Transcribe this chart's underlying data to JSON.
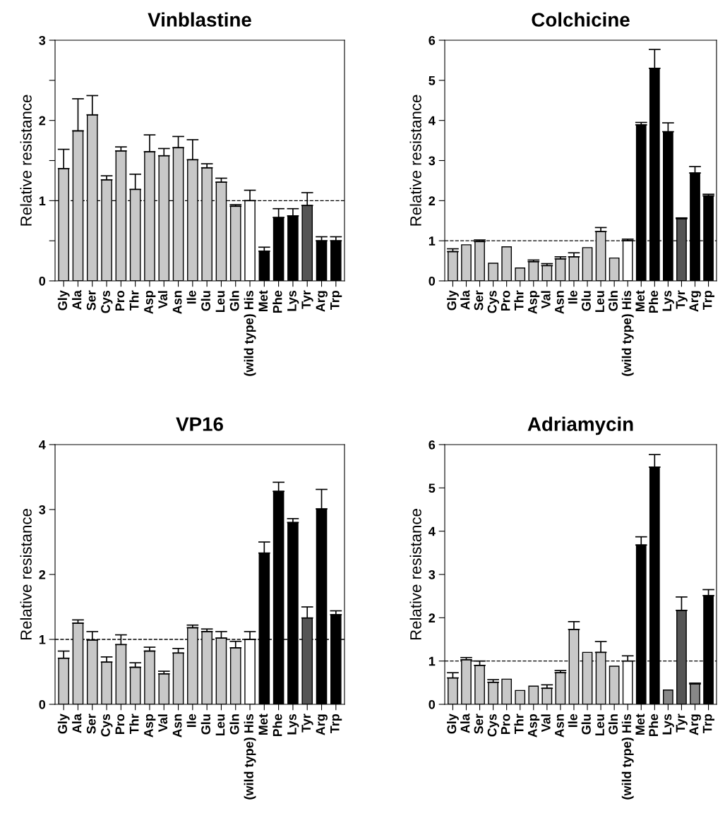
{
  "chart_data": [
    {
      "type": "bar",
      "title": "Vinblastine",
      "ylabel": "Relative resistance",
      "categories": [
        "Gly",
        "Ala",
        "Ser",
        "Cys",
        "Pro",
        "Thr",
        "Asp",
        "Val",
        "Asn",
        "Ile",
        "Glu",
        "Leu",
        "Gln",
        "(wild type) His",
        "Met",
        "Phe",
        "Lys",
        "Tyr",
        "Arg",
        "Trp"
      ],
      "values": [
        1.4,
        1.87,
        2.07,
        1.26,
        1.62,
        1.14,
        1.61,
        1.56,
        1.66,
        1.51,
        1.41,
        1.23,
        0.93,
        1.0,
        0.37,
        0.79,
        0.81,
        0.94,
        0.5,
        0.5
      ],
      "errors": [
        [
          1.4,
          1.64
        ],
        [
          1.87,
          2.27
        ],
        [
          2.07,
          2.31
        ],
        [
          1.26,
          1.31
        ],
        [
          1.62,
          1.67
        ],
        [
          1.14,
          1.33
        ],
        [
          1.61,
          1.82
        ],
        [
          1.56,
          1.65
        ],
        [
          1.66,
          1.8
        ],
        [
          1.51,
          1.76
        ],
        [
          1.41,
          1.46
        ],
        [
          1.23,
          1.28
        ],
        [
          0.93,
          0.95
        ],
        [
          1.0,
          1.13
        ],
        [
          0.37,
          0.42
        ],
        [
          0.79,
          0.9
        ],
        [
          0.81,
          0.9
        ],
        [
          0.94,
          1.1
        ],
        [
          0.5,
          0.55
        ],
        [
          0.5,
          0.55
        ]
      ],
      "colors": [
        "#c8c8c8",
        "#c8c8c8",
        "#c8c8c8",
        "#c8c8c8",
        "#c8c8c8",
        "#c8c8c8",
        "#c8c8c8",
        "#c8c8c8",
        "#c8c8c8",
        "#c8c8c8",
        "#c8c8c8",
        "#c8c8c8",
        "#c8c8c8",
        "#ffffff",
        "#000000",
        "#000000",
        "#000000",
        "#555555",
        "#000000",
        "#000000"
      ],
      "ylim": [
        0,
        3
      ],
      "yticks": [
        0,
        {
          "value": 0.5,
          "label": null
        },
        1,
        {
          "value": 1.5,
          "label": null
        },
        2,
        {
          "value": 2.5,
          "label": null
        },
        3
      ],
      "ref_lines": [
        {
          "axis": "y",
          "value": 1,
          "label": null,
          "line_style": "dashed",
          "color": "#000000"
        }
      ],
      "grid": false,
      "legend": false
    },
    {
      "type": "bar",
      "title": "Colchicine",
      "ylabel": "Relative resistance",
      "categories": [
        "Gly",
        "Ala",
        "Ser",
        "Cys",
        "Pro",
        "Thr",
        "Asp",
        "Val",
        "Asn",
        "Ile",
        "Glu",
        "Leu",
        "Gln",
        "(wild type) His",
        "Met",
        "Phe",
        "Lys",
        "Tyr",
        "Arg",
        "Trp"
      ],
      "values": [
        0.73,
        0.9,
        0.98,
        0.44,
        0.85,
        0.32,
        0.48,
        0.38,
        0.55,
        0.6,
        0.83,
        1.23,
        0.57,
        1.0,
        3.89,
        5.3,
        3.72,
        1.55,
        2.69,
        2.12
      ],
      "errors": [
        [
          0.73,
          0.8
        ],
        null,
        [
          0.98,
          1.02
        ],
        null,
        null,
        null,
        [
          0.48,
          0.52
        ],
        [
          0.38,
          0.43
        ],
        [
          0.55,
          0.6
        ],
        [
          0.6,
          0.7
        ],
        null,
        [
          1.23,
          1.33
        ],
        null,
        [
          1.0,
          1.04
        ],
        [
          3.89,
          3.95
        ],
        [
          5.3,
          5.77
        ],
        [
          3.72,
          3.94
        ],
        [
          1.55,
          1.57
        ],
        [
          2.69,
          2.85
        ],
        [
          2.12,
          2.16
        ]
      ],
      "colors": [
        "#c8c8c8",
        "#c8c8c8",
        "#c8c8c8",
        "#c8c8c8",
        "#c8c8c8",
        "#c8c8c8",
        "#c8c8c8",
        "#c8c8c8",
        "#c8c8c8",
        "#c8c8c8",
        "#c8c8c8",
        "#c8c8c8",
        "#c8c8c8",
        "#ffffff",
        "#000000",
        "#000000",
        "#000000",
        "#555555",
        "#000000",
        "#000000"
      ],
      "ylim": [
        0,
        6
      ],
      "yticks": [
        0,
        1,
        2,
        3,
        4,
        5,
        6
      ],
      "ref_lines": [
        {
          "axis": "y",
          "value": 1,
          "label": null,
          "line_style": "dashed",
          "color": "#000000"
        }
      ],
      "grid": false,
      "legend": false
    },
    {
      "type": "bar",
      "title": "VP16",
      "ylabel": "Relative resistance",
      "categories": [
        "Gly",
        "Ala",
        "Ser",
        "Cys",
        "Pro",
        "Thr",
        "Asp",
        "Val",
        "Asn",
        "Ile",
        "Glu",
        "Leu",
        "Gln",
        "(wild type) His",
        "Met",
        "Phe",
        "Lys",
        "Tyr",
        "Arg",
        "Trp"
      ],
      "values": [
        0.71,
        1.25,
        0.99,
        0.65,
        0.92,
        0.57,
        0.82,
        0.47,
        0.79,
        1.18,
        1.12,
        1.02,
        0.87,
        1.0,
        2.33,
        3.28,
        2.8,
        1.33,
        3.01,
        1.38
      ],
      "errors": [
        [
          0.71,
          0.82
        ],
        [
          1.25,
          1.3
        ],
        [
          0.99,
          1.12
        ],
        [
          0.65,
          0.73
        ],
        [
          0.92,
          1.07
        ],
        [
          0.57,
          0.64
        ],
        [
          0.82,
          0.88
        ],
        [
          0.47,
          0.51
        ],
        [
          0.79,
          0.86
        ],
        [
          1.18,
          1.22
        ],
        [
          1.12,
          1.16
        ],
        [
          1.02,
          1.12
        ],
        [
          0.87,
          0.97
        ],
        [
          1.0,
          1.12
        ],
        [
          2.33,
          2.5
        ],
        [
          3.28,
          3.42
        ],
        [
          2.8,
          2.86
        ],
        [
          1.33,
          1.5
        ],
        [
          3.01,
          3.31
        ],
        [
          1.38,
          1.44
        ]
      ],
      "colors": [
        "#c8c8c8",
        "#c8c8c8",
        "#c8c8c8",
        "#c8c8c8",
        "#c8c8c8",
        "#c8c8c8",
        "#c8c8c8",
        "#c8c8c8",
        "#c8c8c8",
        "#c8c8c8",
        "#c8c8c8",
        "#c8c8c8",
        "#c8c8c8",
        "#ffffff",
        "#000000",
        "#000000",
        "#000000",
        "#555555",
        "#000000",
        "#000000"
      ],
      "ylim": [
        0,
        4
      ],
      "yticks": [
        0,
        1,
        2,
        3,
        4
      ],
      "ref_lines": [
        {
          "axis": "y",
          "value": 1,
          "label": null,
          "line_style": "dashed",
          "color": "#000000"
        }
      ],
      "grid": false,
      "legend": false
    },
    {
      "type": "bar",
      "title": "Adriamycin",
      "ylabel": "Relative resistance",
      "categories": [
        "Gly",
        "Ala",
        "Ser",
        "Cys",
        "Pro",
        "Thr",
        "Asp",
        "Val",
        "Asn",
        "Ile",
        "Glu",
        "Leu",
        "Gln",
        "(wild type) His",
        "Met",
        "Phe",
        "Lys",
        "Tyr",
        "Arg",
        "Trp"
      ],
      "values": [
        0.61,
        1.03,
        0.9,
        0.51,
        0.58,
        0.32,
        0.42,
        0.37,
        0.73,
        1.73,
        1.2,
        1.2,
        0.88,
        1.0,
        3.68,
        5.48,
        0.33,
        2.17,
        0.47,
        2.51
      ],
      "errors": [
        [
          0.61,
          0.73
        ],
        [
          1.03,
          1.08
        ],
        [
          0.9,
          1.0
        ],
        [
          0.51,
          0.57
        ],
        null,
        null,
        null,
        [
          0.37,
          0.45
        ],
        [
          0.73,
          0.78
        ],
        [
          1.73,
          1.91
        ],
        null,
        [
          1.2,
          1.45
        ],
        null,
        [
          1.0,
          1.12
        ],
        [
          3.68,
          3.87
        ],
        [
          5.48,
          5.77
        ],
        null,
        [
          2.17,
          2.48
        ],
        [
          0.47,
          0.49
        ],
        [
          2.51,
          2.65
        ]
      ],
      "colors": [
        "#c8c8c8",
        "#c8c8c8",
        "#c8c8c8",
        "#c8c8c8",
        "#c8c8c8",
        "#c8c8c8",
        "#c8c8c8",
        "#c8c8c8",
        "#c8c8c8",
        "#c8c8c8",
        "#c8c8c8",
        "#c8c8c8",
        "#c8c8c8",
        "#ffffff",
        "#000000",
        "#000000",
        "#888888",
        "#555555",
        "#888888",
        "#000000"
      ],
      "ylim": [
        0,
        6
      ],
      "yticks": [
        0,
        1,
        2,
        3,
        4,
        5,
        6
      ],
      "ref_lines": [
        {
          "axis": "y",
          "value": 1,
          "label": null,
          "line_style": "dashed",
          "color": "#000000"
        }
      ],
      "grid": false,
      "legend": false
    }
  ]
}
